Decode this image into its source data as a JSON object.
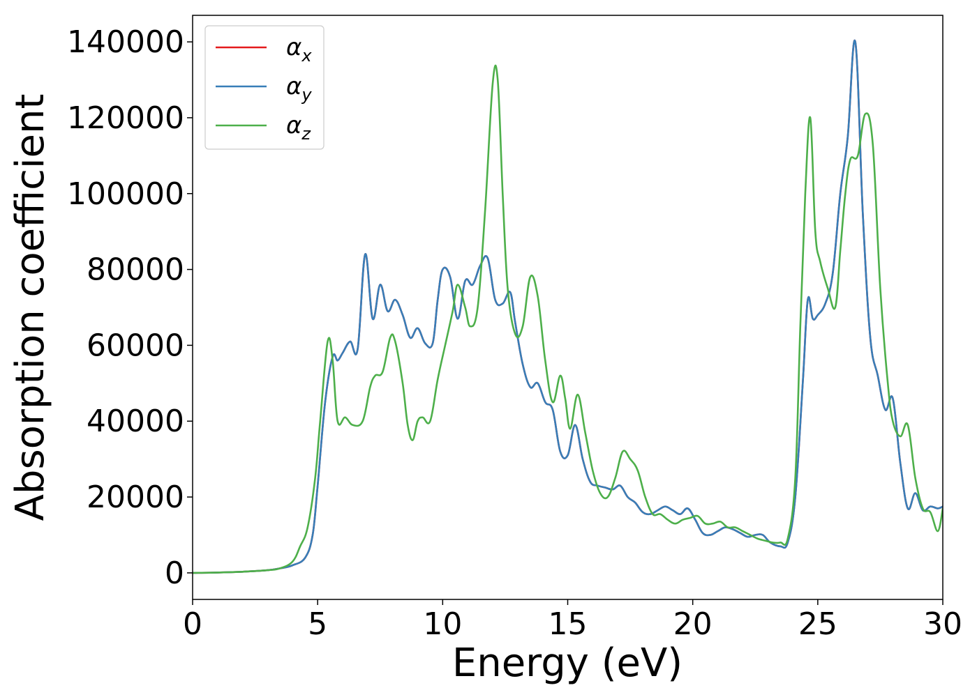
{
  "chart_data": {
    "type": "line",
    "xlabel": "Energy (eV)",
    "ylabel": "Absorption coefficient",
    "xlim": [
      0,
      30
    ],
    "ylim": [
      -7000,
      147000
    ],
    "x_ticks": [
      0,
      5,
      10,
      15,
      20,
      25,
      30
    ],
    "y_ticks": [
      0,
      20000,
      40000,
      60000,
      80000,
      100000,
      120000,
      140000
    ],
    "grid": false,
    "legend_position": "upper-left",
    "legend": [
      {
        "base": "α",
        "sub": "x",
        "color": "#e41a1c"
      },
      {
        "base": "α",
        "sub": "y",
        "color": "#377eb8"
      },
      {
        "base": "α",
        "sub": "z",
        "color": "#4daf4a"
      }
    ],
    "series": [
      {
        "name": "αx",
        "color": "#e41a1c",
        "x": [
          0,
          1,
          2,
          3,
          3.5,
          4,
          4.5,
          4.8,
          5,
          5.3,
          5.6,
          5.8,
          6,
          6.3,
          6.6,
          6.9,
          7.2,
          7.5,
          7.8,
          8.1,
          8.4,
          8.7,
          9,
          9.3,
          9.6,
          9.8,
          10,
          10.3,
          10.6,
          10.9,
          11.2,
          11.5,
          11.8,
          12.1,
          12.4,
          12.7,
          12.9,
          13.2,
          13.5,
          13.8,
          14.1,
          14.4,
          14.7,
          15,
          15.3,
          15.6,
          15.9,
          16.2,
          16.5,
          16.8,
          17.1,
          17.4,
          17.7,
          18,
          18.3,
          18.6,
          18.9,
          19.2,
          19.5,
          19.8,
          20.1,
          20.4,
          20.7,
          21,
          21.3,
          21.6,
          21.9,
          22.2,
          22.5,
          22.8,
          23.1,
          23.5,
          23.8,
          24.1,
          24.4,
          24.6,
          24.8,
          25,
          25.3,
          25.6,
          25.9,
          26.2,
          26.5,
          26.8,
          27.1,
          27.4,
          27.7,
          28,
          28.3,
          28.6,
          28.9,
          29.2,
          29.5,
          29.8,
          30
        ],
        "values": [
          0,
          100,
          300,
          700,
          1200,
          2000,
          4000,
          10000,
          23000,
          45000,
          57000,
          56000,
          58000,
          61000,
          59000,
          84000,
          67000,
          76000,
          69000,
          72000,
          68000,
          62000,
          64500,
          60500,
          60500,
          72000,
          80000,
          78000,
          67000,
          77000,
          76000,
          81000,
          83000,
          72000,
          71000,
          74000,
          66000,
          55000,
          49000,
          50000,
          45000,
          43000,
          32000,
          31000,
          39000,
          30000,
          24000,
          23000,
          22500,
          22000,
          23000,
          20000,
          18500,
          16000,
          15500,
          16500,
          17500,
          16500,
          15500,
          17000,
          14000,
          10500,
          10000,
          11000,
          12000,
          11500,
          10500,
          9500,
          10000,
          10000,
          8000,
          7000,
          8000,
          20000,
          50000,
          72000,
          67000,
          68000,
          71000,
          79000,
          100000,
          115000,
          140000,
          95000,
          62000,
          52000,
          43000,
          46000,
          29000,
          17000,
          21000,
          16500,
          17500,
          17000,
          17500
        ]
      },
      {
        "name": "αy",
        "color": "#377eb8",
        "x": [
          0,
          1,
          2,
          3,
          3.5,
          4,
          4.5,
          4.8,
          5,
          5.3,
          5.6,
          5.8,
          6,
          6.3,
          6.6,
          6.9,
          7.2,
          7.5,
          7.8,
          8.1,
          8.4,
          8.7,
          9,
          9.3,
          9.6,
          9.8,
          10,
          10.3,
          10.6,
          10.9,
          11.2,
          11.5,
          11.8,
          12.1,
          12.4,
          12.7,
          12.9,
          13.2,
          13.5,
          13.8,
          14.1,
          14.4,
          14.7,
          15,
          15.3,
          15.6,
          15.9,
          16.2,
          16.5,
          16.8,
          17.1,
          17.4,
          17.7,
          18,
          18.3,
          18.6,
          18.9,
          19.2,
          19.5,
          19.8,
          20.1,
          20.4,
          20.7,
          21,
          21.3,
          21.6,
          21.9,
          22.2,
          22.5,
          22.8,
          23.1,
          23.5,
          23.8,
          24.1,
          24.4,
          24.6,
          24.8,
          25,
          25.3,
          25.6,
          25.9,
          26.2,
          26.5,
          26.8,
          27.1,
          27.4,
          27.7,
          28,
          28.3,
          28.6,
          28.9,
          29.2,
          29.5,
          29.8,
          30
        ],
        "values": [
          0,
          100,
          300,
          700,
          1200,
          2000,
          4000,
          10000,
          23000,
          45000,
          57000,
          56000,
          58000,
          61000,
          59000,
          84000,
          67000,
          76000,
          69000,
          72000,
          68000,
          62000,
          64500,
          60500,
          60500,
          72000,
          80000,
          78000,
          67000,
          77000,
          76000,
          81000,
          83000,
          72000,
          71000,
          74000,
          66000,
          55000,
          49000,
          50000,
          45000,
          43000,
          32000,
          31000,
          39000,
          30000,
          24000,
          23000,
          22500,
          22000,
          23000,
          20000,
          18500,
          16000,
          15500,
          16500,
          17500,
          16500,
          15500,
          17000,
          14000,
          10500,
          10000,
          11000,
          12000,
          11500,
          10500,
          9500,
          10000,
          10000,
          8000,
          7000,
          8000,
          20000,
          50000,
          72000,
          67000,
          68000,
          71000,
          79000,
          100000,
          115000,
          140000,
          95000,
          62000,
          52000,
          43000,
          46000,
          29000,
          17000,
          21000,
          16500,
          17500,
          17000,
          17500
        ]
      },
      {
        "name": "αz",
        "color": "#4daf4a",
        "x": [
          0,
          1,
          2,
          3,
          3.5,
          4,
          4.3,
          4.6,
          4.9,
          5.1,
          5.4,
          5.6,
          5.8,
          6.1,
          6.4,
          6.8,
          7.1,
          7.3,
          7.6,
          7.9,
          8.1,
          8.4,
          8.6,
          8.8,
          9,
          9.2,
          9.5,
          9.8,
          10.1,
          10.4,
          10.6,
          10.9,
          11.1,
          11.4,
          11.7,
          12,
          12.2,
          12.4,
          12.6,
          12.9,
          13.2,
          13.5,
          13.8,
          14.1,
          14.4,
          14.7,
          14.9,
          15.1,
          15.4,
          15.7,
          16,
          16.3,
          16.6,
          16.9,
          17.2,
          17.5,
          17.8,
          18.1,
          18.4,
          18.7,
          19,
          19.3,
          19.6,
          19.9,
          20.2,
          20.5,
          20.8,
          21.1,
          21.4,
          21.7,
          22,
          22.3,
          22.6,
          22.9,
          23.2,
          23.5,
          23.8,
          24.1,
          24.3,
          24.5,
          24.7,
          24.9,
          25.1,
          25.4,
          25.7,
          25.9,
          26.1,
          26.3,
          26.6,
          26.9,
          27.2,
          27.5,
          27.8,
          28,
          28.3,
          28.6,
          28.9,
          29.2,
          29.5,
          29.8,
          30
        ],
        "values": [
          0,
          100,
          300,
          700,
          1200,
          3000,
          7000,
          12000,
          25000,
          40000,
          61000,
          56000,
          40000,
          41000,
          39000,
          40000,
          49000,
          52000,
          53000,
          62000,
          61000,
          50000,
          39000,
          35000,
          40000,
          41000,
          40000,
          51000,
          60000,
          69000,
          76000,
          70000,
          65000,
          70000,
          96000,
          129000,
          130000,
          100000,
          75000,
          63000,
          65000,
          78000,
          73000,
          56000,
          45000,
          52000,
          46000,
          38000,
          47000,
          37000,
          27000,
          21000,
          20000,
          25000,
          32000,
          30000,
          27000,
          20000,
          15500,
          15500,
          14000,
          13000,
          14000,
          14500,
          15000,
          13000,
          13000,
          13500,
          12000,
          12000,
          11000,
          10000,
          9000,
          8500,
          8000,
          8000,
          9000,
          25000,
          65000,
          100000,
          120000,
          90000,
          82000,
          75000,
          70000,
          85000,
          100000,
          109000,
          110000,
          121000,
          113000,
          75000,
          50000,
          40000,
          36000,
          39000,
          25000,
          17000,
          16000,
          11000,
          17000
        ]
      }
    ]
  }
}
